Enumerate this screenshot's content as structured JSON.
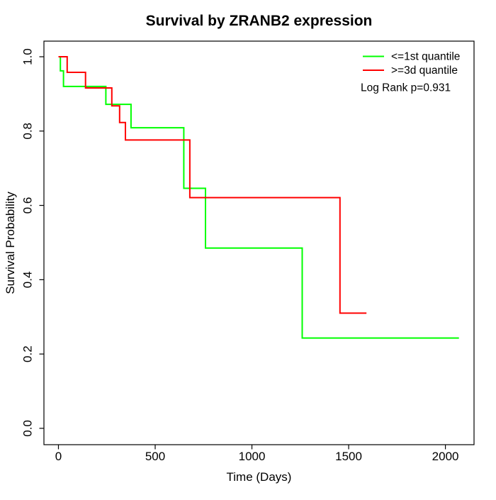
{
  "chart_data": {
    "type": "line",
    "subtype": "kaplan-meier-step",
    "title": "Survival by ZRANB2 expression",
    "xlabel": "Time (Days)",
    "ylabel": "Survival Probability",
    "xlim": [
      -75,
      2148
    ],
    "ylim": [
      -0.044,
      1.042
    ],
    "x_ticks": [
      0,
      500,
      1000,
      1500,
      2000
    ],
    "y_ticks": [
      "0.0",
      "0.2",
      "0.4",
      "0.6",
      "0.8",
      "1.0"
    ],
    "grid": false,
    "legend_position": "top-right",
    "annotation": "Log Rank p=0.931",
    "series": [
      {
        "name": "<=1st quantile",
        "color": "#00ff00",
        "steps": [
          [
            0,
            1.0
          ],
          [
            10,
            0.962
          ],
          [
            26,
            0.92
          ],
          [
            245,
            0.872
          ],
          [
            375,
            0.809
          ],
          [
            648,
            0.646
          ],
          [
            760,
            0.485
          ],
          [
            1260,
            0.243
          ]
        ],
        "end_time": 2070
      },
      {
        "name": ">=3d quantile",
        "color": "#ff0000",
        "steps": [
          [
            0,
            1.0
          ],
          [
            45,
            0.958
          ],
          [
            140,
            0.916
          ],
          [
            276,
            0.868
          ],
          [
            316,
            0.823
          ],
          [
            346,
            0.776
          ],
          [
            679,
            0.621
          ],
          [
            1455,
            0.31
          ]
        ],
        "end_time": 1592
      }
    ]
  }
}
